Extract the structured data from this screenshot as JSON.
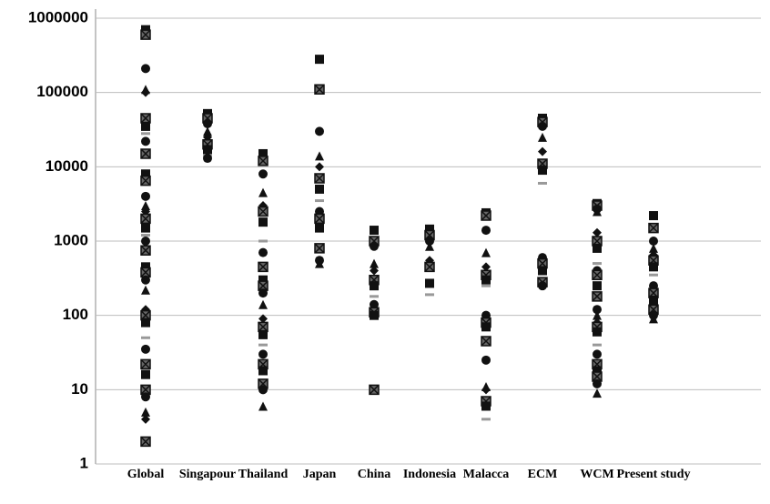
{
  "chart_data": {
    "type": "strip",
    "categories": [
      "Global",
      "Singapour",
      "Thailand",
      "Japan",
      "China",
      "Indonesia",
      "Malacca",
      "ECM",
      "WCM",
      "Present study"
    ],
    "values": [
      [
        700000,
        600000,
        210000,
        110000,
        100000,
        45000,
        35000,
        28000,
        22000,
        15000,
        8000,
        6500,
        4000,
        3000,
        2500,
        2000,
        1500,
        1200,
        1000,
        750,
        450,
        380,
        300,
        220,
        120,
        100,
        80,
        50,
        35,
        22,
        16,
        10,
        8,
        5,
        4,
        2
      ],
      [
        52000,
        45000,
        38000,
        30000,
        25000,
        20000,
        17000,
        14000,
        13000
      ],
      [
        15000,
        12000,
        8000,
        4500,
        3000,
        2500,
        1800,
        1000,
        700,
        450,
        300,
        250,
        200,
        140,
        90,
        70,
        55,
        40,
        30,
        22,
        18,
        12,
        10,
        6
      ],
      [
        280000,
        110000,
        30000,
        14000,
        10000,
        7000,
        5000,
        3500,
        2500,
        2000,
        1500,
        800,
        550,
        500
      ],
      [
        1400,
        1000,
        850,
        500,
        400,
        300,
        250,
        180,
        140,
        110,
        100,
        10
      ],
      [
        1450,
        1200,
        1000,
        850,
        550,
        450,
        270,
        190
      ],
      [
        2400,
        2200,
        1400,
        700,
        450,
        350,
        300,
        250,
        100,
        80,
        70,
        45,
        25,
        11,
        10,
        7,
        6,
        4
      ],
      [
        45000,
        40000,
        35000,
        25000,
        16000,
        11000,
        9000,
        6000,
        600,
        500,
        400,
        280,
        250
      ],
      [
        3200,
        3000,
        2700,
        2500,
        1300,
        1000,
        800,
        500,
        400,
        350,
        250,
        180,
        120,
        100,
        80,
        70,
        60,
        40,
        30,
        22,
        18,
        15,
        12,
        9
      ],
      [
        2200,
        1500,
        1000,
        800,
        650,
        550,
        450,
        350,
        250,
        200,
        160,
        120,
        100,
        90
      ]
    ],
    "color": "#111111",
    "ylim": [
      1,
      1000000
    ],
    "yticks": [
      1,
      10,
      100,
      1000,
      10000,
      100000,
      1000000
    ],
    "log_y": true,
    "grid": true
  }
}
